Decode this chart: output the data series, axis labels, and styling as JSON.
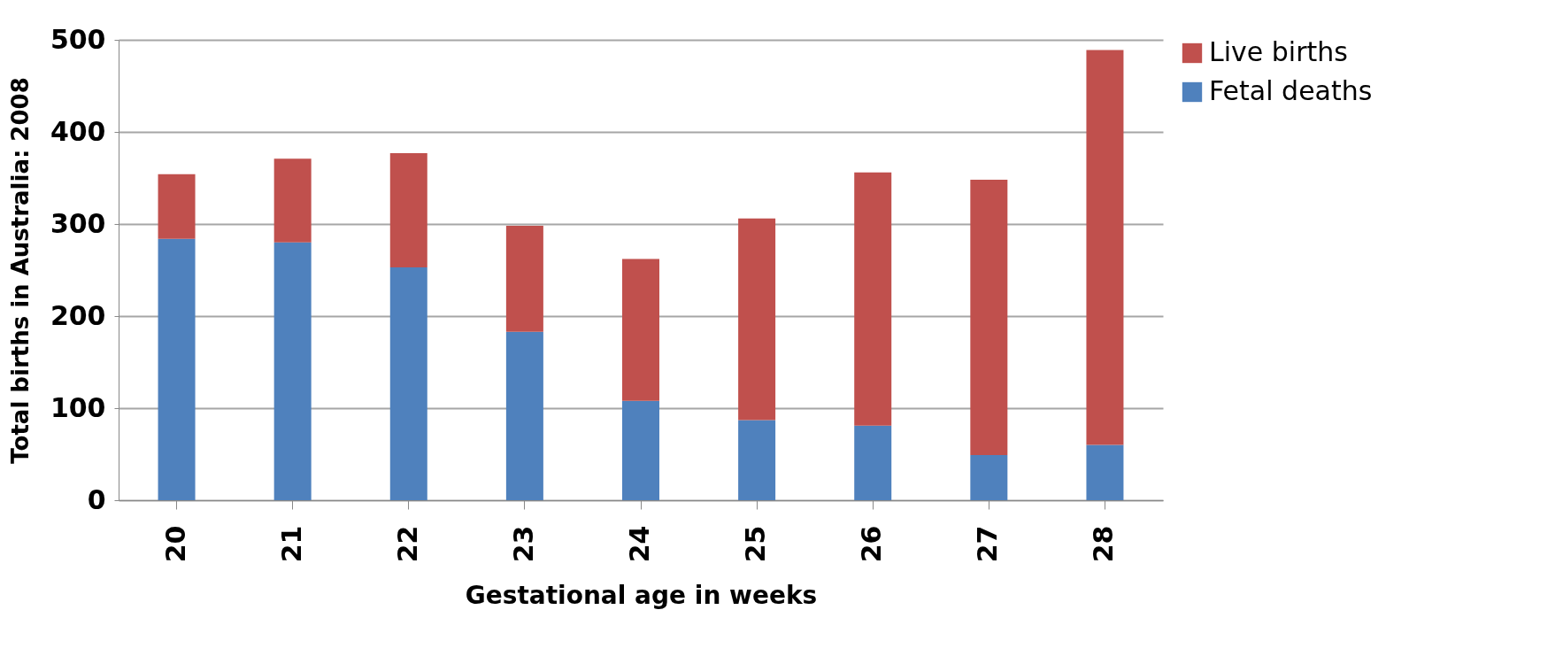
{
  "chart_data": {
    "type": "bar",
    "stacked": true,
    "xlabel": "Gestational age in weeks",
    "ylabel": "Total births in Australia: 2008",
    "categories": [
      "20",
      "21",
      "22",
      "23",
      "24",
      "25",
      "26",
      "27",
      "28"
    ],
    "series": [
      {
        "name": "Fetal deaths",
        "color": "#4f81bd",
        "values": [
          284,
          280,
          253,
          183,
          108,
          87,
          81,
          49,
          60
        ]
      },
      {
        "name": "Live births",
        "color": "#c0504d",
        "values": [
          70,
          91,
          124,
          115,
          154,
          219,
          275,
          299,
          429
        ]
      }
    ],
    "ylim": [
      0,
      500
    ],
    "yticks": [
      0,
      100,
      200,
      300,
      400,
      500
    ],
    "grid": "y",
    "legend": "right"
  }
}
